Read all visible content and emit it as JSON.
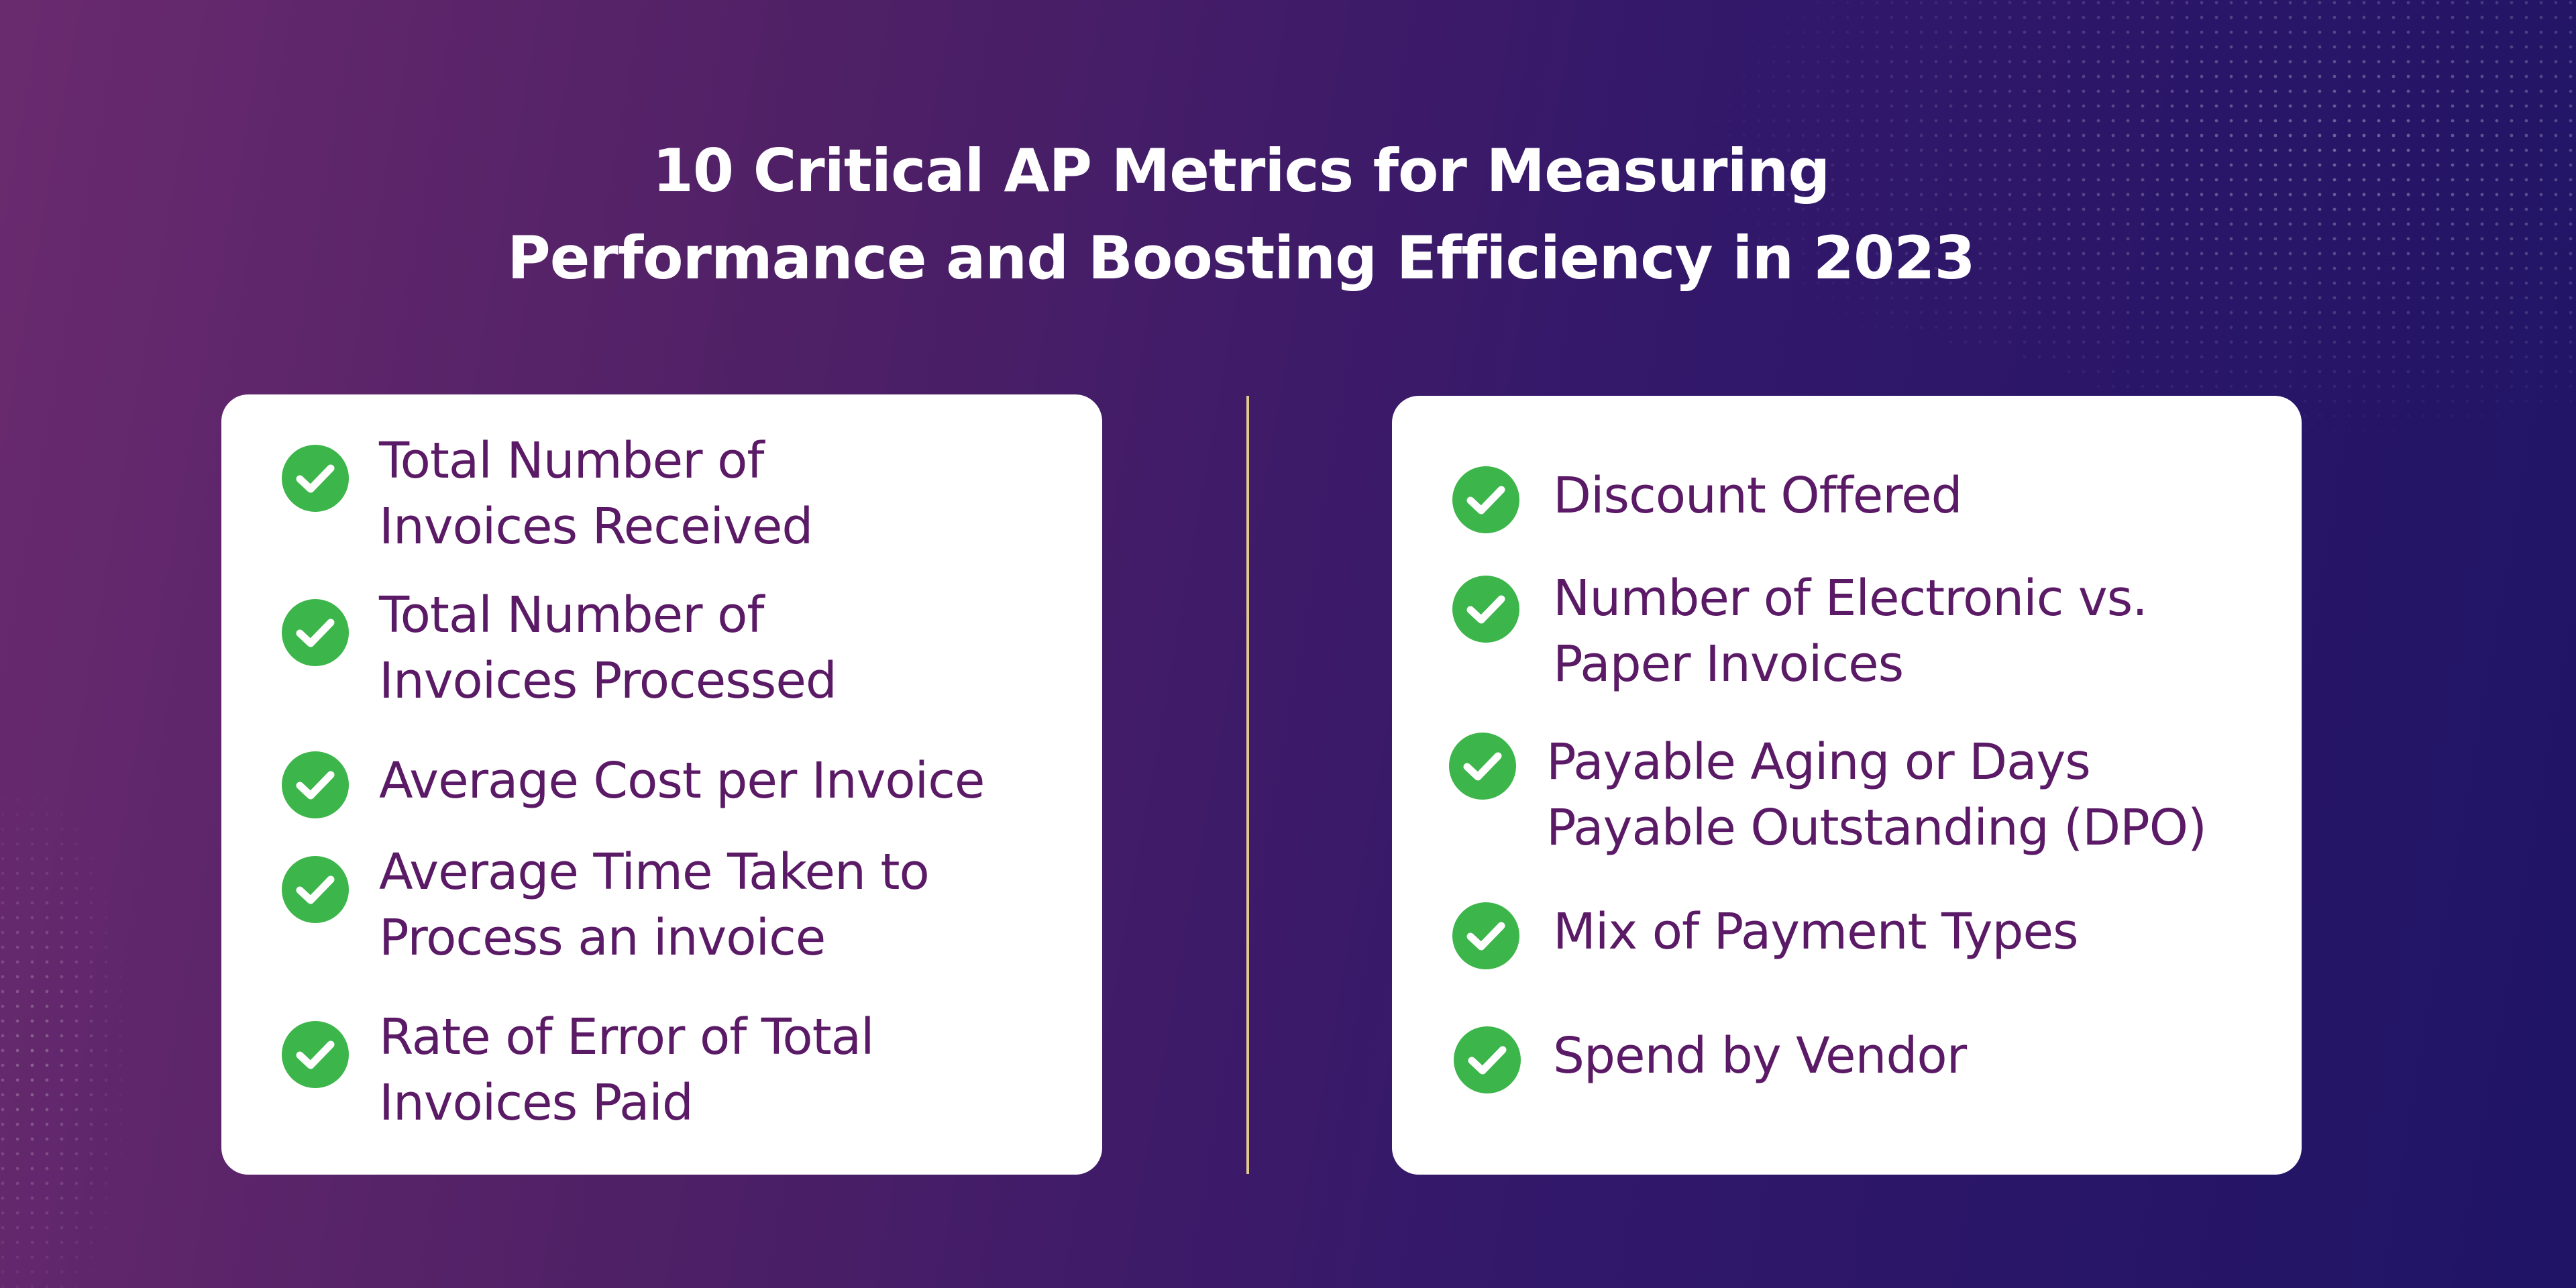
{
  "title": {
    "line1": "10 Critical AP Metrics for Measuring",
    "line2": "Performance and Boosting Efficiency in 2023"
  },
  "colors": {
    "check": "#3cb54a",
    "item_text": "#5b1a66",
    "divider": "#e2c98c",
    "title": "#ffffff"
  },
  "left_card": {
    "items": [
      {
        "line1": "Total Number of",
        "line2": "Invoices Received",
        "icon": "check-circle-icon"
      },
      {
        "line1": "Total Number of",
        "line2": "Invoices Processed",
        "icon": "check-circle-icon"
      },
      {
        "line1": "Average Cost per Invoice",
        "line2": "",
        "icon": "check-circle-icon"
      },
      {
        "line1": "Average Time Taken to",
        "line2": "Process an invoice",
        "icon": "check-circle-icon"
      },
      {
        "line1": "Rate of Error of Total",
        "line2": "Invoices Paid",
        "icon": "check-circle-icon"
      }
    ]
  },
  "right_card": {
    "items": [
      {
        "line1": "Discount Offered",
        "line2": "",
        "icon": "check-circle-icon"
      },
      {
        "line1": "Number of Electronic vs.",
        "line2": "Paper Invoices",
        "icon": "check-circle-icon"
      },
      {
        "line1": "Payable Aging or Days",
        "line2": "Payable Outstanding (DPO)",
        "icon": "check-circle-icon"
      },
      {
        "line1": "Mix of Payment Types",
        "line2": "",
        "icon": "check-circle-icon"
      },
      {
        "line1": "Spend by Vendor",
        "line2": "",
        "icon": "check-circle-icon"
      }
    ]
  }
}
